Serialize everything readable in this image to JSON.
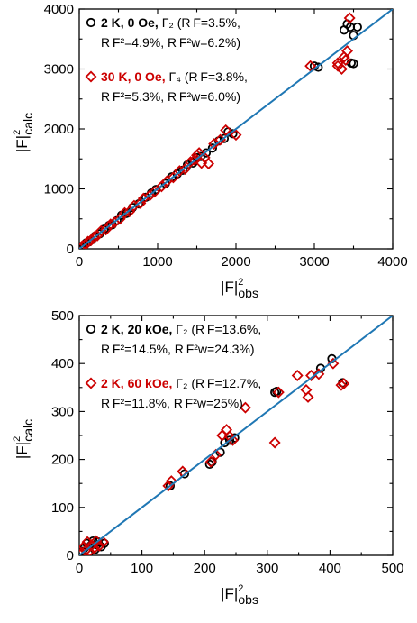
{
  "colors": {
    "series_black": "#000000",
    "series_red": "#cc0000",
    "fit_line": "#1f77b4",
    "axis": "#000000"
  },
  "chart_data": [
    {
      "type": "scatter",
      "xlabel": {
        "base": "|F|",
        "sup": "2",
        "sub": "obs"
      },
      "ylabel": {
        "base": "|F|",
        "sup": "2",
        "sub": "calc"
      },
      "xlim": [
        0,
        4000
      ],
      "ylim": [
        0,
        4000
      ],
      "xticks": [
        "0",
        "1000",
        "2000",
        "3000",
        "4000"
      ],
      "yticks": [
        "0",
        "1000",
        "2000",
        "3000",
        "4000"
      ],
      "grid": false,
      "legend_position": "top-left",
      "identity_line": true,
      "series": [
        {
          "name": "2 K, 0 Oe, Γ2 (RF=3.5%, RF²=4.9%, RF²w=6.2%)",
          "legend_line1": {
            "bold": "2 K, 0 Oe,",
            "rest": " Γ₂ (R F=3.5%,"
          },
          "legend_line2": "R F²=4.9%, R F²w=6.2%)",
          "marker": "circle",
          "color": "#000000",
          "points": [
            [
              30,
              40
            ],
            [
              60,
              55
            ],
            [
              90,
              100
            ],
            [
              120,
              115
            ],
            [
              160,
              150
            ],
            [
              200,
              210
            ],
            [
              260,
              250
            ],
            [
              320,
              330
            ],
            [
              380,
              390
            ],
            [
              420,
              400
            ],
            [
              480,
              470
            ],
            [
              540,
              560
            ],
            [
              600,
              590
            ],
            [
              680,
              690
            ],
            [
              760,
              750
            ],
            [
              850,
              860
            ],
            [
              920,
              930
            ],
            [
              980,
              990
            ],
            [
              1100,
              1090
            ],
            [
              1180,
              1200
            ],
            [
              1250,
              1250
            ],
            [
              1320,
              1310
            ],
            [
              1380,
              1400
            ],
            [
              1450,
              1430
            ],
            [
              1500,
              1520
            ],
            [
              1550,
              1540
            ],
            [
              1620,
              1600
            ],
            [
              1700,
              1680
            ],
            [
              1780,
              1800
            ],
            [
              1850,
              1840
            ],
            [
              1900,
              1950
            ],
            [
              1960,
              1920
            ],
            [
              3000,
              3050
            ],
            [
              3050,
              3030
            ],
            [
              3380,
              3650
            ],
            [
              3420,
              3750
            ],
            [
              3460,
              3700
            ],
            [
              3500,
              3560
            ],
            [
              3550,
              3700
            ],
            [
              3470,
              3100
            ],
            [
              3500,
              3090
            ]
          ]
        },
        {
          "name": "30 K, 0 Oe, Γ4 (RF=3.8%, RF²=5.3%, RF²w=6.0%)",
          "legend_line1": {
            "bold": "30 K, 0 Oe,",
            "rest": " Γ₄ (R F=3.8%,"
          },
          "legend_line2": "R F²=5.3%, R F²w=6.0%)",
          "marker": "diamond",
          "color": "#cc0000",
          "points": [
            [
              40,
              50
            ],
            [
              80,
              70
            ],
            [
              110,
              120
            ],
            [
              150,
              140
            ],
            [
              190,
              200
            ],
            [
              230,
              220
            ],
            [
              280,
              300
            ],
            [
              340,
              320
            ],
            [
              400,
              410
            ],
            [
              450,
              440
            ],
            [
              520,
              500
            ],
            [
              580,
              600
            ],
            [
              640,
              620
            ],
            [
              700,
              720
            ],
            [
              780,
              760
            ],
            [
              820,
              840
            ],
            [
              900,
              890
            ],
            [
              960,
              950
            ],
            [
              1050,
              1040
            ],
            [
              1120,
              1130
            ],
            [
              1200,
              1190
            ],
            [
              1280,
              1300
            ],
            [
              1350,
              1330
            ],
            [
              1420,
              1450
            ],
            [
              1470,
              1480
            ],
            [
              1500,
              1560
            ],
            [
              1530,
              1600
            ],
            [
              1560,
              1430
            ],
            [
              1600,
              1520
            ],
            [
              1650,
              1420
            ],
            [
              1720,
              1750
            ],
            [
              1800,
              1820
            ],
            [
              1870,
              1980
            ],
            [
              2000,
              1900
            ],
            [
              2950,
              3050
            ],
            [
              3300,
              3100
            ],
            [
              3350,
              3000
            ],
            [
              3400,
              3150
            ],
            [
              3420,
              3300
            ],
            [
              3450,
              3850
            ],
            [
              3380,
              3200
            ],
            [
              3300,
              3050
            ]
          ]
        }
      ]
    },
    {
      "type": "scatter",
      "xlabel": {
        "base": "|F|",
        "sup": "2",
        "sub": "obs"
      },
      "ylabel": {
        "base": "|F|",
        "sup": "2",
        "sub": "calc"
      },
      "xlim": [
        0,
        500
      ],
      "ylim": [
        0,
        500
      ],
      "xticks": [
        "0",
        "100",
        "200",
        "300",
        "400",
        "500"
      ],
      "yticks": [
        "0",
        "100",
        "200",
        "300",
        "400",
        "500"
      ],
      "grid": false,
      "legend_position": "top-left",
      "identity_line": true,
      "series": [
        {
          "name": "2 K, 20 kOe, Γ2 (RF=13.6%, RF²=14.5%, RF²w=24.3%)",
          "legend_line1": {
            "bold": "2 K, 20 kOe,",
            "rest": " Γ₂ (R F=13.6%,"
          },
          "legend_line2": "R F²=14.5%, R F²w=24.3%)",
          "marker": "circle",
          "color": "#000000",
          "points": [
            [
              5,
              8
            ],
            [
              8,
              15
            ],
            [
              12,
              25
            ],
            [
              15,
              5
            ],
            [
              18,
              20
            ],
            [
              22,
              30
            ],
            [
              25,
              12
            ],
            [
              28,
              22
            ],
            [
              30,
              28
            ],
            [
              35,
              18
            ],
            [
              40,
              25
            ],
            [
              145,
              145
            ],
            [
              168,
              170
            ],
            [
              208,
              190
            ],
            [
              212,
              195
            ],
            [
              225,
              215
            ],
            [
              232,
              235
            ],
            [
              240,
              240
            ],
            [
              248,
              245
            ],
            [
              312,
              340
            ],
            [
              315,
              342
            ],
            [
              385,
              390
            ],
            [
              403,
              410
            ],
            [
              420,
              360
            ]
          ]
        },
        {
          "name": "2 K, 60 kOe, Γ2 (RF=12.7%, RF²=11.8%, RF²w=25%)",
          "legend_line1": {
            "bold": "2 K, 60 kOe,",
            "rest": " Γ₂ (R F=12.7%,"
          },
          "legend_line2": "R F²=11.8%, R F²w=25%)",
          "marker": "diamond",
          "color": "#cc0000",
          "points": [
            [
              4,
              5
            ],
            [
              7,
              18
            ],
            [
              10,
              10
            ],
            [
              13,
              28
            ],
            [
              16,
              8
            ],
            [
              20,
              22
            ],
            [
              24,
              15
            ],
            [
              27,
              30
            ],
            [
              32,
              20
            ],
            [
              38,
              28
            ],
            [
              142,
              145
            ],
            [
              147,
              155
            ],
            [
              165,
              175
            ],
            [
              210,
              195
            ],
            [
              218,
              210
            ],
            [
              228,
              250
            ],
            [
              235,
              262
            ],
            [
              240,
              248
            ],
            [
              245,
              240
            ],
            [
              265,
              308
            ],
            [
              312,
              235
            ],
            [
              318,
              340
            ],
            [
              348,
              375
            ],
            [
              362,
              345
            ],
            [
              365,
              330
            ],
            [
              370,
              375
            ],
            [
              382,
              378
            ],
            [
              405,
              400
            ],
            [
              418,
              355
            ],
            [
              422,
              358
            ]
          ]
        }
      ]
    }
  ]
}
